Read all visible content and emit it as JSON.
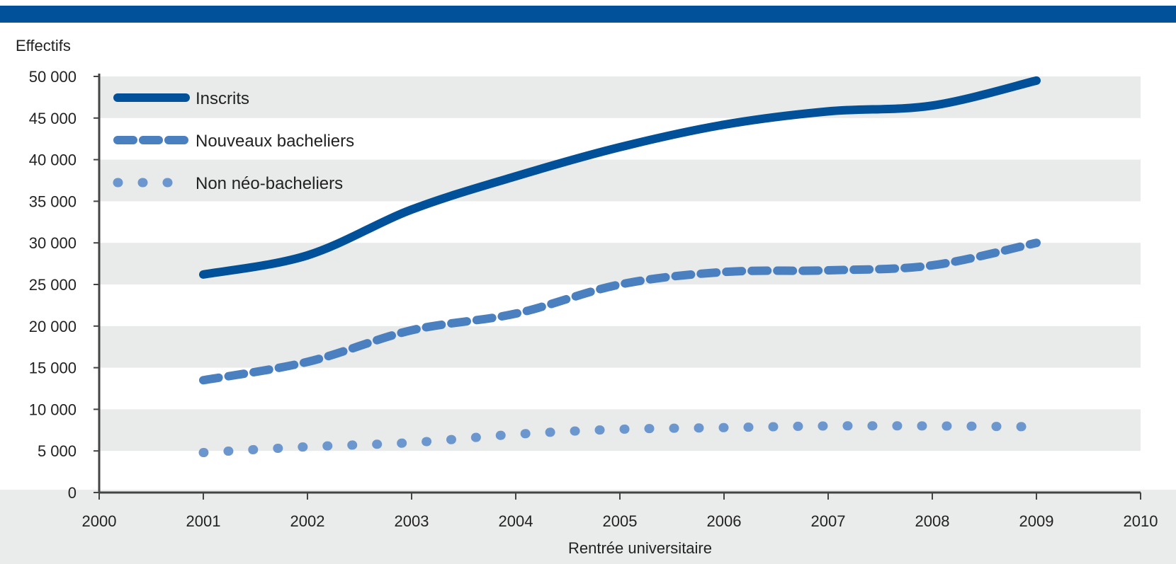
{
  "chart_data": {
    "type": "line",
    "title": "",
    "ylabel": "Effectifs",
    "xlabel": "Rentrée universitaire",
    "xlim": [
      2000,
      2010
    ],
    "ylim": [
      0,
      50000
    ],
    "x_ticks": [
      2000,
      2001,
      2002,
      2003,
      2004,
      2005,
      2006,
      2007,
      2008,
      2009,
      2010
    ],
    "y_ticks": [
      0,
      5000,
      10000,
      15000,
      20000,
      25000,
      30000,
      35000,
      40000,
      45000,
      50000
    ],
    "y_tick_labels": [
      "0",
      "5 000",
      "10 000",
      "15 000",
      "20 000",
      "25 000",
      "30 000",
      "35 000",
      "40 000",
      "45 000",
      "50 000"
    ],
    "grid": "horizontal alternating bands",
    "legend": "top-left",
    "x": [
      2001,
      2002,
      2003,
      2004,
      2005,
      2006,
      2007,
      2008,
      2009
    ],
    "series": [
      {
        "name": "Inscrits",
        "style": "solid",
        "color": "#00509a",
        "values": [
          26200,
          28500,
          34000,
          38000,
          41500,
          44200,
          45800,
          46500,
          49500
        ]
      },
      {
        "name": "Nouveaux bacheliers",
        "style": "dashed",
        "color": "#4a7fc0",
        "values": [
          13500,
          15700,
          19500,
          21500,
          25000,
          26500,
          26700,
          27300,
          30000
        ]
      },
      {
        "name": "Non néo-bacheliers",
        "style": "dotted",
        "color": "#6b96ce",
        "values": [
          4800,
          5500,
          6000,
          7000,
          7600,
          7800,
          8000,
          8000,
          7900
        ]
      }
    ]
  }
}
